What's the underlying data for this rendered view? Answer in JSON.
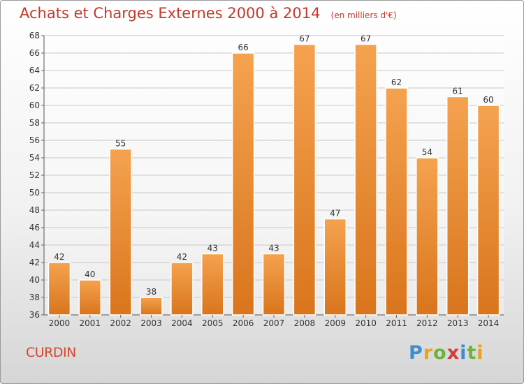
{
  "header": {
    "title": "Achats et Charges Externes 2000 à 2014",
    "subtitle": "(en milliers d'€)"
  },
  "footer": {
    "place": "CURDIN",
    "logo": "Proxiti"
  },
  "colors": {
    "title": "#c0392b",
    "bar_light": "#f5a24f",
    "bar_dark": "#d9751c",
    "logo_letters": [
      "#3a8fd1",
      "#e8a21b",
      "#6cb33e",
      "#d43b3b",
      "#3a8fd1",
      "#6cb33e",
      "#e8a21b"
    ]
  },
  "chart_data": {
    "type": "bar",
    "title": "Achats et Charges Externes 2000 à 2014",
    "xlabel": "",
    "ylabel": "",
    "categories": [
      "2000",
      "2001",
      "2002",
      "2003",
      "2004",
      "2005",
      "2006",
      "2007",
      "2008",
      "2009",
      "2010",
      "2011",
      "2012",
      "2013",
      "2014"
    ],
    "values": [
      42,
      40,
      55,
      38,
      42,
      43,
      66,
      43,
      67,
      47,
      67,
      62,
      54,
      61,
      60
    ],
    "ylim": [
      36,
      68
    ],
    "yticks": [
      36,
      38,
      40,
      42,
      44,
      46,
      48,
      50,
      52,
      54,
      56,
      58,
      60,
      62,
      64,
      66,
      68
    ],
    "grid": true,
    "data_labels": true
  }
}
